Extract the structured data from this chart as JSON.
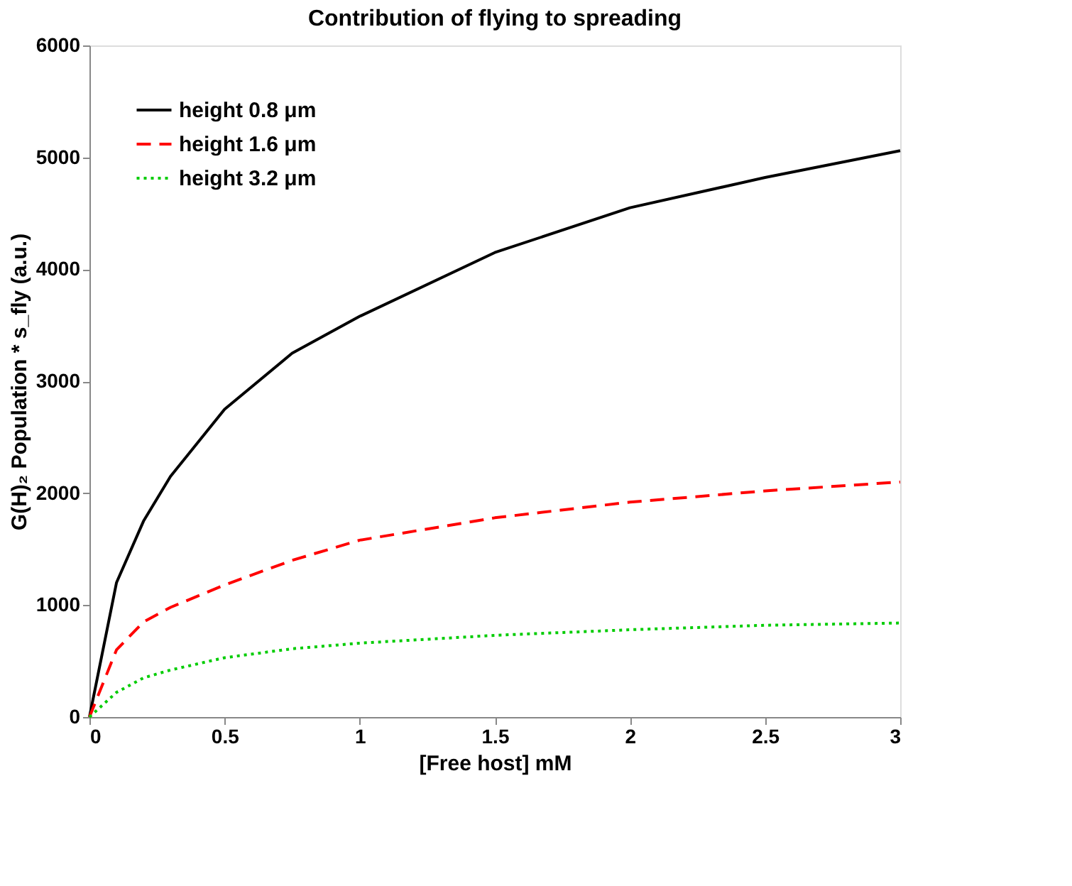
{
  "chart_data": {
    "type": "line",
    "title": "Contribution of flying to spreading",
    "xlabel": "[Free host] mM",
    "ylabel": "G(H)₂ Population * s_fly  (a.u.)",
    "x": [
      0,
      0.1,
      0.2,
      0.3,
      0.5,
      0.75,
      1,
      1.5,
      2,
      2.5,
      3
    ],
    "series": [
      {
        "name": "height 0.8 μm",
        "color": "#000000",
        "line_style": "solid",
        "values": [
          0,
          1200,
          1750,
          2150,
          2750,
          3250,
          3580,
          4150,
          4550,
          4820,
          5060
        ]
      },
      {
        "name": "height 1.6 μm",
        "color": "#ff0000",
        "line_style": "dashed",
        "values": [
          0,
          600,
          850,
          980,
          1180,
          1400,
          1580,
          1780,
          1920,
          2020,
          2100
        ]
      },
      {
        "name": "height 3.2 μm",
        "color": "#00cc00",
        "line_style": "dotted",
        "values": [
          0,
          220,
          350,
          420,
          530,
          610,
          660,
          730,
          780,
          820,
          840
        ]
      }
    ],
    "xlim": [
      0,
      3
    ],
    "xticks": [
      0,
      0.5,
      1,
      1.5,
      2,
      2.5,
      3
    ],
    "ylim": [
      0,
      6000
    ],
    "yticks": [
      0,
      1000,
      2000,
      3000,
      4000,
      5000,
      6000
    ],
    "grid": false,
    "legend": "top left",
    "marker": "none"
  }
}
